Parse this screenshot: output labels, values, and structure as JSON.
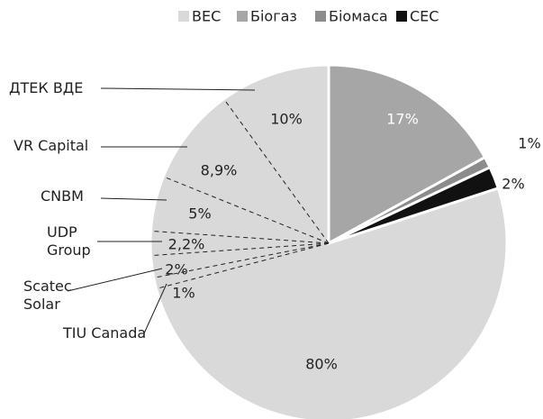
{
  "chart_data": {
    "type": "pie",
    "categories": [
      "ВЕС",
      "Біогаз",
      "Біомаса",
      "СЕС"
    ],
    "values": [
      80,
      17,
      1,
      2
    ],
    "value_labels": [
      "80%",
      "17%",
      "1%",
      "2%"
    ],
    "colors": [
      "#d9d9d9",
      "#a6a6a6",
      "#8c8c8c",
      "#111111"
    ],
    "legend": "top",
    "breakdown": [
      {
        "name": "ДТЕК ВДЕ",
        "value": 10,
        "label": "10%"
      },
      {
        "name": "VR Capital",
        "value": 8.9,
        "label": "8,9%"
      },
      {
        "name": "CNBM",
        "value": 5,
        "label": "5%"
      },
      {
        "name": "UDP Group",
        "value": 2.2,
        "label": "2,2%"
      },
      {
        "name": "Scatec Solar",
        "value": 2,
        "label": "2%"
      },
      {
        "name": "TIU Canada",
        "value": 1,
        "label": "1%"
      }
    ]
  }
}
